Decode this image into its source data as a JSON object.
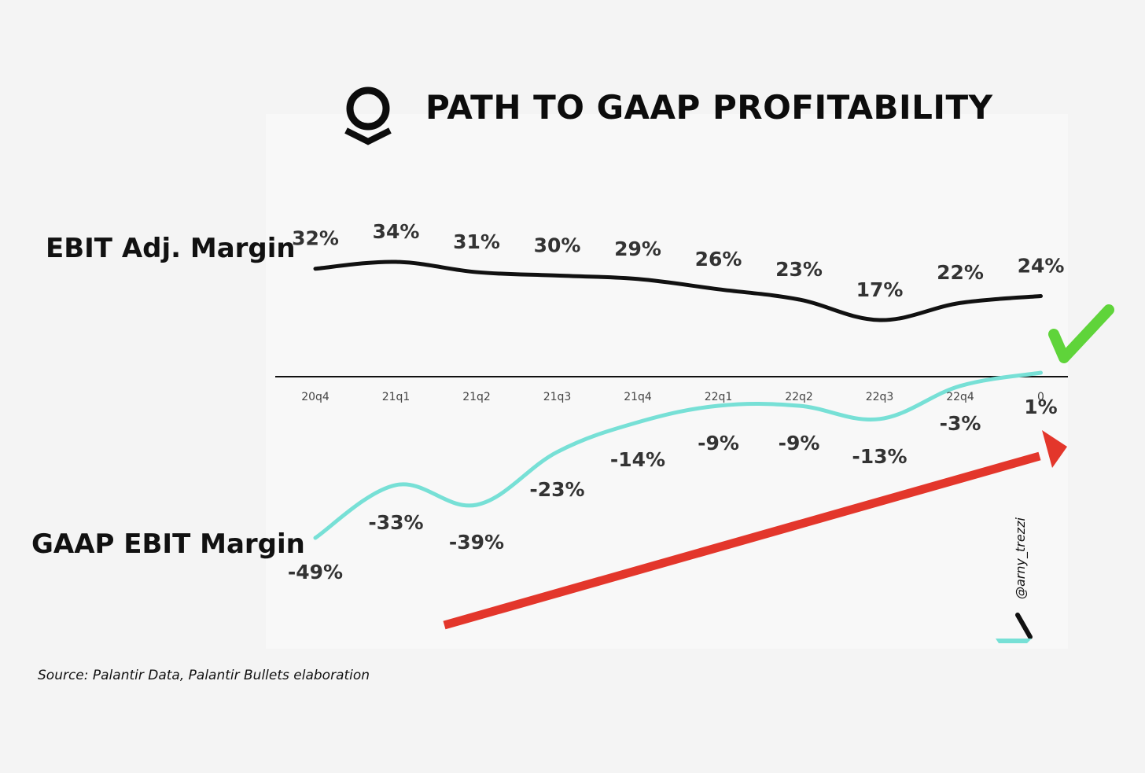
{
  "colors": {
    "background": "#f4f4f4",
    "ebit_line": "#111111",
    "gaap_line": "#77e0d6",
    "arrow": "#e3362b",
    "check": "#5fd43a",
    "axis": "#111111"
  },
  "title": "PATH TO GAAP PROFITABILITY",
  "logo_icon": "palantir-logo-icon",
  "source": "Source: Palantir Data, Palantir Bullets elaboration",
  "watermark": "@arny_trezzi",
  "chart_data": {
    "type": "line",
    "title": "PATH TO GAAP PROFITABILITY",
    "categories": [
      "20q4",
      "21q1",
      "21q2",
      "21q3",
      "21q4",
      "22q1",
      "22q2",
      "22q3",
      "22q4",
      "0"
    ],
    "series": [
      {
        "name": "EBIT Adj. Margin",
        "values": [
          32,
          34,
          31,
          30,
          29,
          26,
          23,
          17,
          22,
          24
        ],
        "labels": [
          "32%",
          "34%",
          "31%",
          "30%",
          "29%",
          "26%",
          "23%",
          "17%",
          "22%",
          "24%"
        ]
      },
      {
        "name": "GAAP EBIT Margin",
        "values": [
          -49,
          -33,
          -39,
          -23,
          -14,
          -9,
          -9,
          -13,
          -3,
          1
        ],
        "labels": [
          "-49%",
          "-33%",
          "-39%",
          "-23%",
          "-14%",
          "-9%",
          "-9%",
          "-13%",
          "-3%",
          "1%"
        ]
      }
    ],
    "annotations": [
      "green check mark",
      "red upward trend arrow"
    ],
    "xlabel": "",
    "ylabel": ""
  }
}
